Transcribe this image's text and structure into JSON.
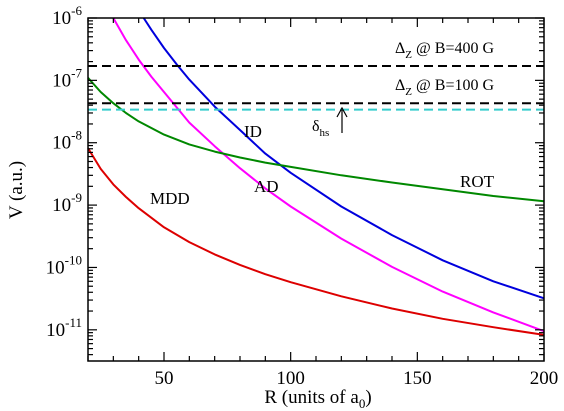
{
  "chart_data": {
    "type": "line",
    "xlabel": "R (units of a",
    "xlabel_sub": "0",
    "xlabel_tail": ")",
    "ylabel": "V (a.u.)",
    "xlim": [
      20,
      200
    ],
    "ylim_log10": [
      -11.5,
      -6
    ],
    "y_scale": "log",
    "x_ticks": [
      50,
      100,
      150,
      200
    ],
    "x_tick_labels": [
      "50",
      "100",
      "150",
      "200"
    ],
    "y_tick_exponents": [
      -11,
      -10,
      -9,
      -8,
      -7,
      -6
    ],
    "y_tick_base": "10",
    "y_tick_labels": [
      "-11",
      "-10",
      "-9",
      "-8",
      "-7",
      "-6"
    ],
    "grid": false,
    "colors": {
      "MDD": "#dd0000",
      "AD": "#ff00ff",
      "ID": "#0000dd",
      "ROT": "#008800",
      "zeeman": "#000000",
      "hs": "#33cccc"
    },
    "series": [
      {
        "name": "MDD",
        "x": [
          20,
          25,
          30,
          35,
          40,
          50,
          60,
          70,
          80,
          90,
          100,
          120,
          140,
          160,
          180,
          200
        ],
        "y": [
          8.2e-09,
          3.8e-09,
          2.15e-09,
          1.35e-09,
          8.9e-10,
          4.4e-10,
          2.55e-10,
          1.62e-10,
          1.1e-10,
          7.8e-11,
          5.8e-11,
          3.45e-11,
          2.2e-11,
          1.5e-11,
          1.1e-11,
          8.3e-12
        ]
      },
      {
        "name": "AD",
        "x": [
          30,
          35,
          40,
          45,
          50,
          60,
          70,
          80,
          90,
          100,
          120,
          140,
          160,
          180,
          200
        ],
        "y": [
          1e-06,
          4.4e-07,
          2.15e-07,
          1.15e-07,
          6.5e-08,
          2.1e-08,
          8.8e-09,
          3.9e-09,
          1.85e-09,
          9.5e-10,
          2.9e-10,
          1.02e-10,
          4.1e-11,
          1.9e-11,
          9.5e-12
        ]
      },
      {
        "name": "ID",
        "x": [
          42,
          45,
          50,
          55,
          60,
          70,
          80,
          90,
          100,
          120,
          140,
          160,
          180,
          200
        ],
        "y": [
          1e-06,
          6.5e-07,
          3.3e-07,
          1.8e-07,
          1.03e-07,
          3.8e-08,
          1.6e-08,
          6.7e-09,
          3.3e-09,
          9.5e-10,
          3.3e-10,
          1.3e-10,
          6e-11,
          3.2e-11
        ]
      },
      {
        "name": "ROT",
        "x": [
          20,
          25,
          30,
          35,
          40,
          50,
          60,
          70,
          80,
          90,
          100,
          120,
          140,
          160,
          180,
          200
        ],
        "y": [
          1.1e-07,
          6.5e-08,
          4.3e-08,
          3e-08,
          2.2e-08,
          1.35e-08,
          9.4e-09,
          7.2e-09,
          5.8e-09,
          4.8e-09,
          4.1e-09,
          3e-09,
          2.3e-09,
          1.8e-09,
          1.4e-09,
          1.15e-09
        ]
      }
    ],
    "hlines": [
      {
        "name": "B=400 G",
        "y": 1.7e-07,
        "style": "dashed",
        "color": "#000000"
      },
      {
        "name": "B=100 G",
        "y": 4.3e-08,
        "style": "dashed",
        "color": "#000000"
      },
      {
        "name": "hs",
        "y": 3.4e-08,
        "style": "dashed",
        "color": "#33cccc"
      }
    ],
    "annotations": {
      "mdd": "MDD",
      "ad": "AD",
      "id": "ID",
      "rot": "ROT",
      "zeeman_400_delta": "Δ",
      "zeeman_400_sub": "Z",
      "zeeman_400_text": " @ B=400 G",
      "zeeman_100_delta": "Δ",
      "zeeman_100_sub": "Z",
      "zeeman_100_text": " @ B=100 G",
      "hs_delta": "δ",
      "hs_sub": "hs"
    }
  }
}
